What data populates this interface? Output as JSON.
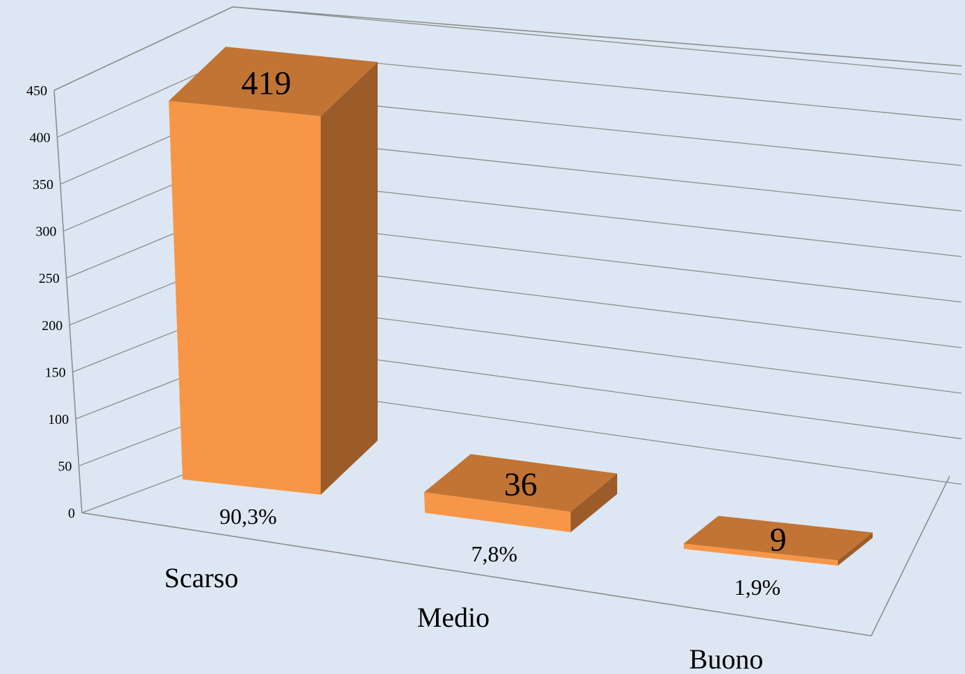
{
  "chart_data": {
    "type": "bar",
    "style": "3d-column",
    "categories": [
      "Scarso",
      "Medio",
      "Buono"
    ],
    "values": [
      419,
      36,
      9
    ],
    "percent_labels": [
      "90,3%",
      "7,8%",
      "1,9%"
    ],
    "ylim": [
      0,
      450
    ],
    "yticks": [
      "0",
      "50",
      "100",
      "150",
      "200",
      "250",
      "300",
      "350",
      "400",
      "450"
    ],
    "grid": true,
    "legend": "none",
    "colors": {
      "bar_front": "#f79646",
      "bar_top": "#c17434",
      "bar_side": "#9c5c29",
      "background": "#dde7f3",
      "gridline": "#8c8c8c"
    }
  }
}
